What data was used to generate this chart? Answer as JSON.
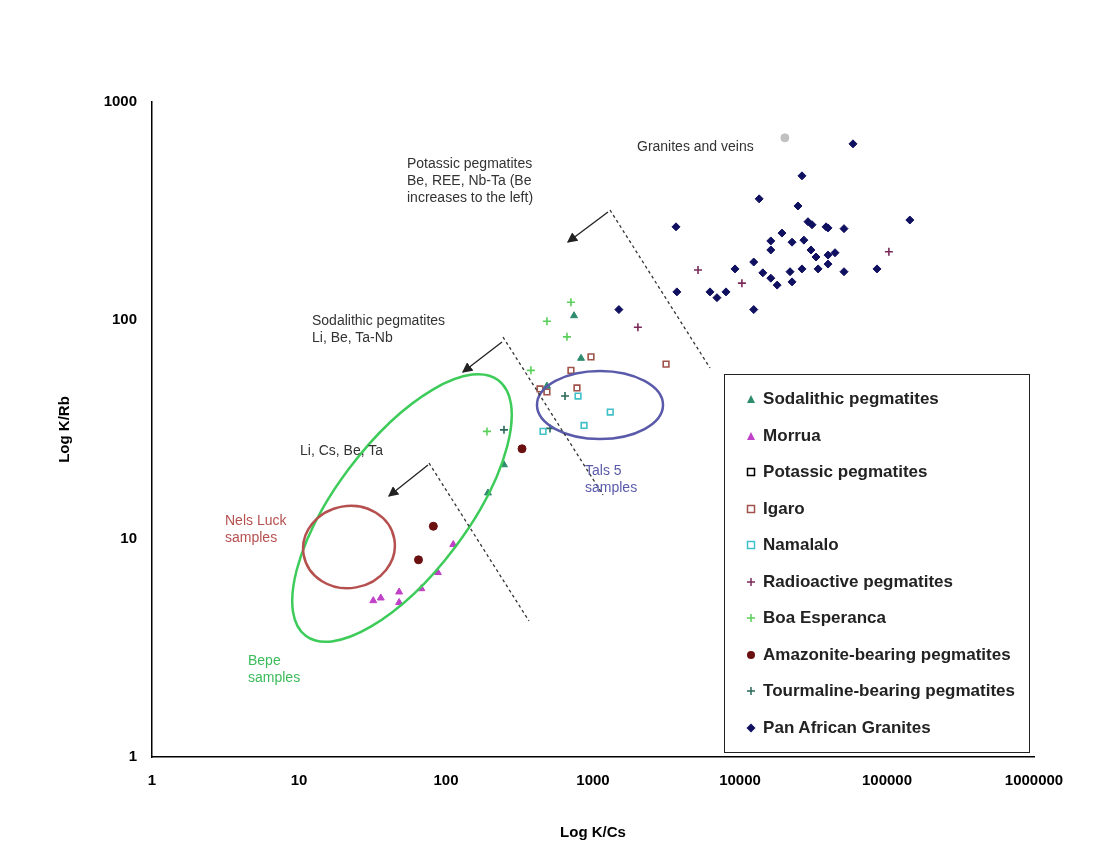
{
  "chart_data": {
    "type": "scatter",
    "xlabel": "Log K/Cs",
    "ylabel": "Log K/Rb",
    "log": "xy",
    "xlim": [
      1,
      1000000
    ],
    "ylim": [
      1,
      1000
    ],
    "xticks": [
      1,
      10,
      100,
      1000,
      10000,
      100000,
      1000000
    ],
    "yticks": [
      1,
      10,
      100,
      1000
    ],
    "grid": false,
    "legend": "bottom right",
    "annotations": [
      "Potassic pegmatites\nBe, REE, Nb-Ta (Be\nincreases to the left)",
      "Sodalithic pegmatites\nLi, Be, Ta-Nb",
      "Li, Cs, Be, Ta",
      "Granites and veins",
      "Nels Luck\nsamples",
      "Bepe\nsamples",
      "Tals 5\nsamples"
    ],
    "series": [
      {
        "name": "Sodalithic pegmatites",
        "color": "#2e8b6e",
        "marker": "triangle",
        "x": [
          743,
          829,
          486,
          248,
          193
        ],
        "values": [
          105,
          67,
          50,
          21.8,
          16.2
        ]
      },
      {
        "name": "Morrua",
        "color": "#c040c8",
        "marker": "triangle",
        "x": [
          112,
          88,
          68,
          48,
          48,
          36,
          32
        ],
        "values": [
          9.4,
          7,
          5.9,
          5.7,
          5.1,
          5.35,
          5.2
        ]
      },
      {
        "name": "Potassic pegmatites",
        "color": "#000000",
        "marker": "square"
      },
      {
        "name": "Igaro",
        "color": "#a0524a",
        "marker": "square",
        "x": [
          969,
          708,
          436,
          778,
          486,
          3140
        ],
        "values": [
          68,
          59,
          48.5,
          49,
          47,
          63
        ]
      },
      {
        "name": "Namalalo",
        "color": "#40c0c8",
        "marker": "square",
        "x": [
          791,
          457,
          869,
          1310
        ],
        "values": [
          45,
          31,
          33,
          38
        ]
      },
      {
        "name": "Radioactive pegmatites",
        "color": "#7a2a5a",
        "marker": "cross",
        "x": [
          5180,
          10300,
          103000,
          2020
        ],
        "values": [
          170,
          148,
          206,
          93
        ]
      },
      {
        "name": "Boa Esperanca",
        "color": "#5ad05a",
        "marker": "cross",
        "x": [
          708,
          486,
          665,
          378,
          190
        ],
        "values": [
          121,
          99,
          84,
          59,
          31
        ]
      },
      {
        "name": "Amazonite-bearing pegmatites",
        "color": "#6b1010",
        "marker": "circle",
        "x": [
          329,
          82,
          65
        ],
        "values": [
          25.8,
          11.4,
          8
        ]
      },
      {
        "name": "Tourmaline-bearing pegmatites",
        "color": "#2a6a5a",
        "marker": "cross",
        "x": [
          645,
          248,
          510
        ],
        "values": [
          45,
          31.5,
          32
        ]
      },
      {
        "name": "Pan African Granites",
        "color": "#101060",
        "marker": "diamond",
        "x": [
          58700,
          26400,
          13500,
          24800,
          3670,
          143000,
          29000,
          30900,
          38500,
          39700,
          51000,
          19300,
          16200,
          22600,
          27200,
          16200,
          30400,
          32900,
          39700,
          44300,
          39700,
          34000,
          26400,
          21900,
          51000,
          85500,
          12400,
          14300,
          16200,
          17900,
          22600,
          9250,
          6250,
          6970,
          8030,
          3720,
          12400,
          1500
        ],
        "values": [
          643,
          459,
          360,
          334,
          268,
          288,
          283,
          274,
          268,
          265,
          263,
          251,
          231,
          228,
          233,
          210,
          210,
          195,
          199,
          204,
          181,
          172,
          172,
          167,
          167,
          172,
          185,
          165,
          156,
          145,
          150,
          172,
          135,
          127,
          135,
          135,
          112,
          112
        ]
      },
      {
        "color": "#c0c0c0",
        "marker": "circle",
        "x": [
          20200
        ],
        "values": [
          685
        ]
      }
    ]
  }
}
